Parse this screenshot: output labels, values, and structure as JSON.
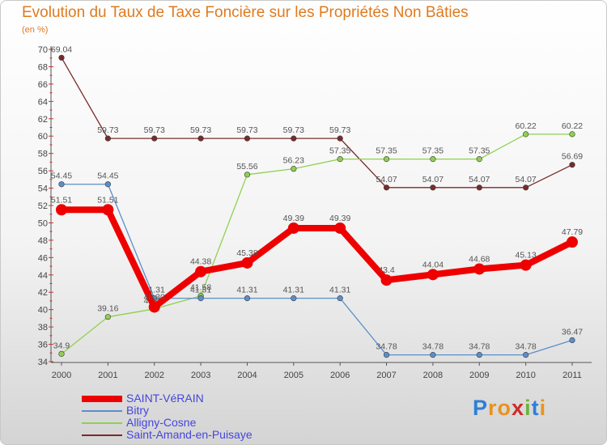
{
  "chart_data": {
    "type": "line",
    "title": "Evolution du Taux de Taxe Foncière sur les Propriétés Non Bâties",
    "subtitle": "(en %)",
    "categories": [
      "2000",
      "2001",
      "2002",
      "2003",
      "2004",
      "2005",
      "2006",
      "2007",
      "2008",
      "2009",
      "2010",
      "2011"
    ],
    "ylim": [
      34,
      70
    ],
    "yticks": [
      34,
      36,
      38,
      40,
      42,
      44,
      46,
      48,
      50,
      52,
      54,
      56,
      58,
      60,
      62,
      64,
      66,
      68,
      70
    ],
    "series": [
      {
        "name": "SAINT-VéRAIN",
        "color": "#ee0000",
        "values": [
          51.51,
          51.51,
          40.3,
          44.38,
          45.38,
          49.39,
          49.39,
          43.4,
          44.04,
          44.68,
          45.13,
          47.79
        ],
        "labels": [
          "51.51",
          "51.51",
          "40.30",
          "44.38",
          "45.38",
          "49.39",
          "49.39",
          "43.4",
          "44.04",
          "44.68",
          "45.13",
          "47.79"
        ]
      },
      {
        "name": "Bitry",
        "color": "#5b8fc9",
        "values": [
          54.45,
          54.45,
          41.31,
          41.31,
          41.31,
          41.31,
          41.31,
          34.78,
          34.78,
          34.78,
          34.78,
          36.47
        ],
        "labels": [
          "54.45",
          "54.45",
          "41.31",
          "41.31",
          "41.31",
          "41.31",
          "41.31",
          "34.78",
          "34.78",
          "34.78",
          "34.78",
          "36.47"
        ]
      },
      {
        "name": "Alligny-Cosne",
        "color": "#8fd14f",
        "values": [
          34.9,
          39.16,
          40.08,
          41.58,
          55.56,
          56.23,
          57.35,
          57.35,
          57.35,
          57.35,
          60.22,
          60.22
        ],
        "labels": [
          "34.9",
          "39.16",
          "40.08",
          "41.58",
          "55.56",
          "56.23",
          "57.35",
          "57.35",
          "57.35",
          "57.35",
          "60.22",
          "60.22"
        ]
      },
      {
        "name": "Saint-Amand-en-Puisaye",
        "color": "#7a2a2a",
        "values": [
          69.04,
          59.73,
          59.73,
          59.73,
          59.73,
          59.73,
          59.73,
          54.07,
          54.07,
          54.07,
          54.07,
          56.69
        ],
        "labels": [
          "69.04",
          "59.73",
          "59.73",
          "59.73",
          "59.73",
          "59.73",
          "59.73",
          "54.07",
          "54.07",
          "54.07",
          "54.07",
          "56.69"
        ]
      }
    ]
  },
  "logo": {
    "letters": [
      "P",
      "r",
      "o",
      "x",
      "i",
      "t",
      "i"
    ],
    "colors": [
      "#2f7fd6",
      "#e8931e",
      "#e8931e",
      "#d12a2a",
      "#6db33f",
      "#2f7fd6",
      "#e8931e"
    ]
  }
}
